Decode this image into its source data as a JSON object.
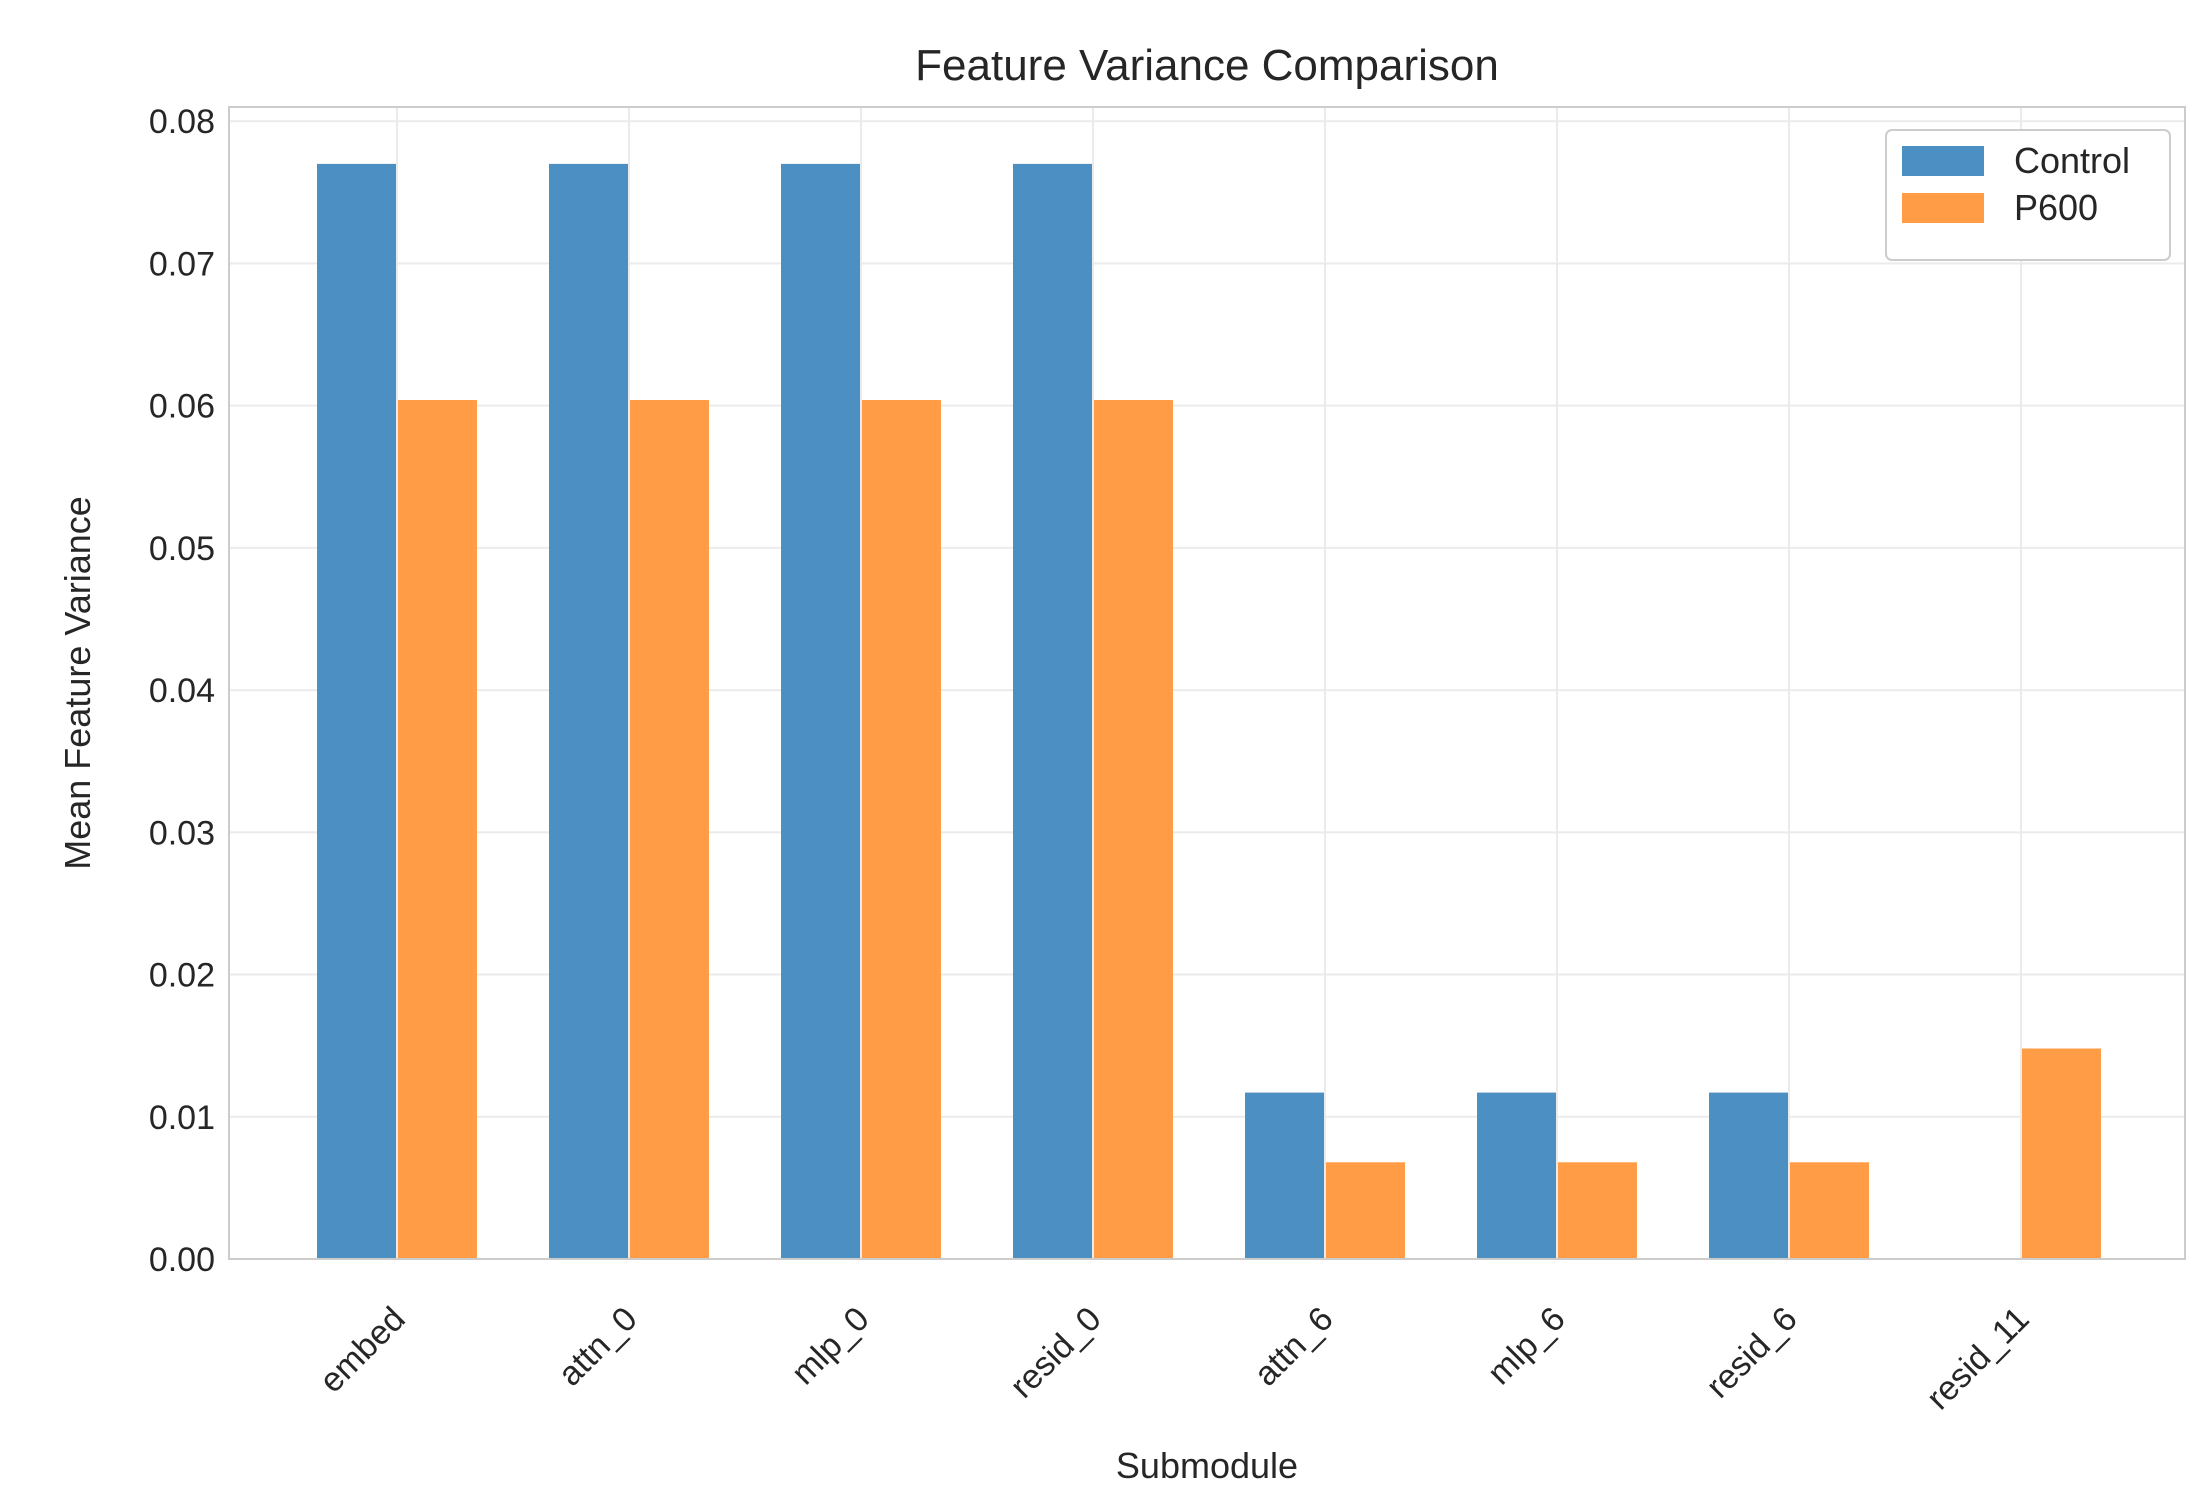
{
  "chart_data": {
    "type": "bar",
    "title": "Feature Variance Comparison",
    "xlabel": "Submodule",
    "ylabel": "Mean Feature Variance",
    "categories": [
      "embed",
      "attn_0",
      "mlp_0",
      "resid_0",
      "attn_6",
      "mlp_6",
      "resid_6",
      "resid_11"
    ],
    "series": [
      {
        "name": "Control",
        "color": "#4c8fc3",
        "values": [
          0.077,
          0.077,
          0.077,
          0.077,
          0.0117,
          0.0117,
          0.0117,
          0
        ]
      },
      {
        "name": "P600",
        "color": "#ff9c45",
        "values": [
          0.0604,
          0.0604,
          0.0604,
          0.0604,
          0.0068,
          0.0068,
          0.0068,
          0.0148
        ]
      }
    ],
    "ylim": [
      0,
      0.081
    ],
    "yticks": [
      "0.00",
      "0.01",
      "0.02",
      "0.03",
      "0.04",
      "0.05",
      "0.06",
      "0.07",
      "0.08"
    ],
    "grid": true,
    "legend_position": "top-right"
  }
}
